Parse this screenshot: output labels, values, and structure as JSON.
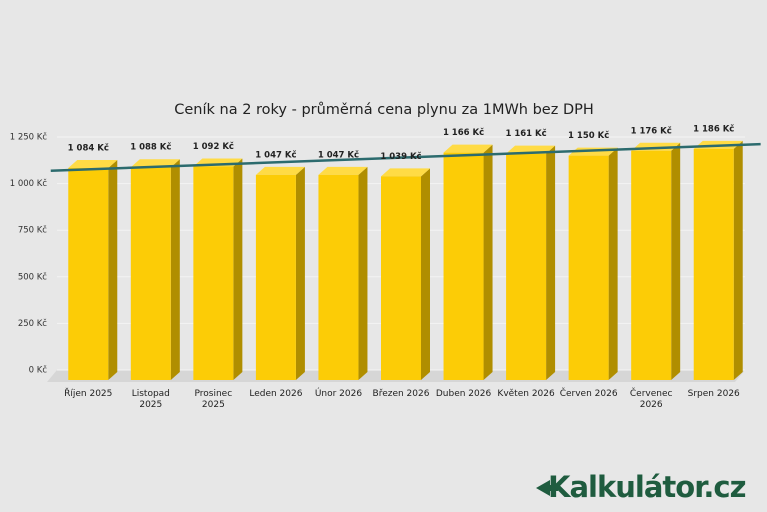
{
  "chart_data": {
    "type": "bar3d",
    "title": "Ceník na 2 roky - průměrná cena plynu za 1MWh bez DPH",
    "categories": [
      "Říjen 2025",
      "Listopad 2025",
      "Prosinec 2025",
      "Leden 2026",
      "Únor 2026",
      "Březen 2026",
      "Duben 2026",
      "Květen 2026",
      "Červen 2026",
      "Červenec 2026",
      "Srpen 2026"
    ],
    "values": [
      1084,
      1088,
      1092,
      1047,
      1047,
      1039,
      1166,
      1161,
      1150,
      1176,
      1186
    ],
    "value_labels": [
      "1 084 Kč",
      "1 088 Kč",
      "1 092 Kč",
      "1 047 Kč",
      "1 047 Kč",
      "1 039 Kč",
      "1 166 Kč",
      "1 161 Kč",
      "1 150 Kč",
      "1 176 Kč",
      "1 186 Kč"
    ],
    "color": "#fccc06",
    "ylim": [
      0,
      1250
    ],
    "yticks": [
      {
        "value": 0,
        "label": "0 Kč"
      },
      {
        "value": 250,
        "label": "250 Kč"
      },
      {
        "value": 500,
        "label": "500 Kč"
      },
      {
        "value": 750,
        "label": "750 Kč"
      },
      {
        "value": 1000,
        "label": "1 000 Kč"
      },
      {
        "value": 1250,
        "label": "1 250 Kč"
      }
    ],
    "grid": true,
    "trendline": true,
    "trendline_color": "#2c6b6e"
  },
  "logo": "Kalkulátor.cz"
}
